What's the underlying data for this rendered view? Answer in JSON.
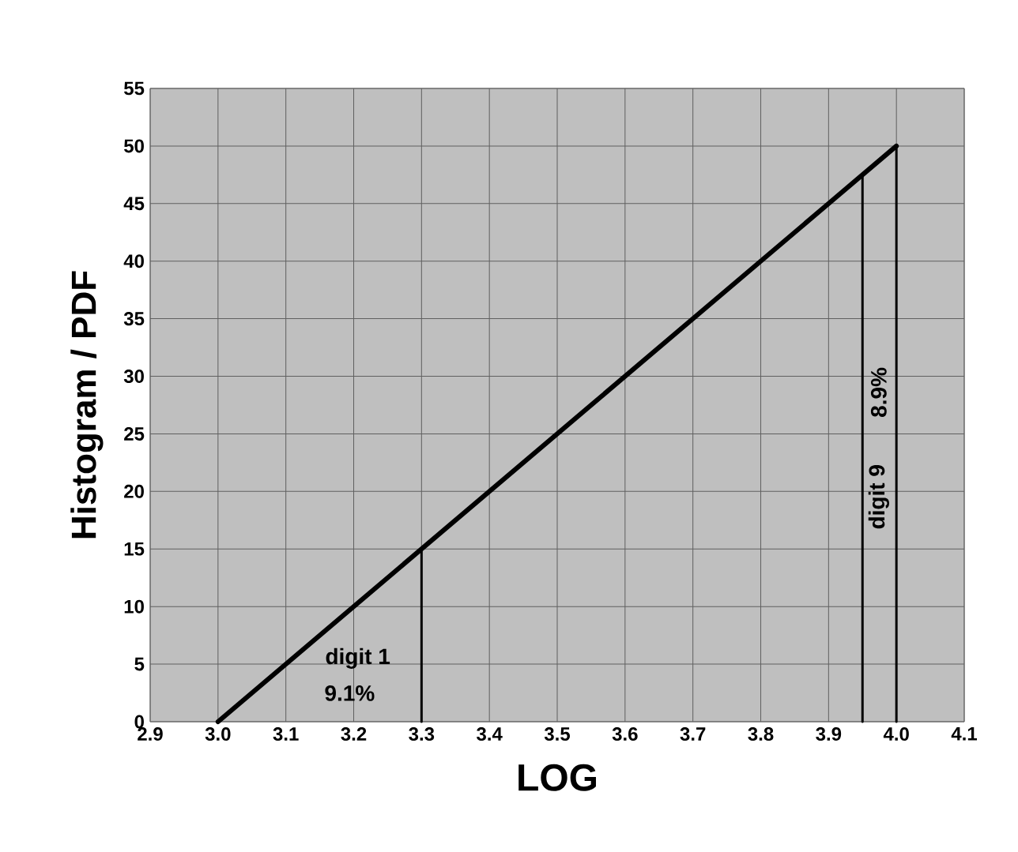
{
  "chart_data": {
    "type": "line",
    "xlabel": "LOG",
    "ylabel": "Histogram / PDF",
    "series": [
      {
        "type": "line",
        "color": "#000000",
        "x": [
          3.0,
          4.0
        ],
        "values": [
          0,
          50
        ]
      },
      {
        "type": "line",
        "color": "#000000",
        "x": [
          3.3,
          3.3
        ],
        "values": [
          0,
          15
        ]
      },
      {
        "type": "line",
        "color": "#000000",
        "x": [
          3.95,
          3.95
        ],
        "values": [
          0,
          47.5
        ]
      },
      {
        "type": "line",
        "color": "#000000",
        "x": [
          4.0,
          4.0
        ],
        "values": [
          0,
          50
        ]
      }
    ],
    "annotations": [
      "digit 1",
      "9.1%",
      "digit 9",
      "8.9%"
    ],
    "xlim": [
      2.9,
      4.1
    ],
    "xticks": [
      {
        "value": 2.9,
        "label": "2.9"
      },
      {
        "value": 3.0,
        "label": "3.0"
      },
      {
        "value": 3.1,
        "label": "3.1"
      },
      {
        "value": 3.2,
        "label": "3.2"
      },
      {
        "value": 3.3,
        "label": "3.3"
      },
      {
        "value": 3.4,
        "label": "3.4"
      },
      {
        "value": 3.5,
        "label": "3.5"
      },
      {
        "value": 3.6,
        "label": "3.6"
      },
      {
        "value": 3.7,
        "label": "3.7"
      },
      {
        "value": 3.8,
        "label": "3.8"
      },
      {
        "value": 3.9,
        "label": "3.9"
      },
      {
        "value": 4.0,
        "label": "4.0"
      },
      {
        "value": 4.1,
        "label": "4.1"
      }
    ],
    "ylim": [
      0,
      55
    ],
    "yticks": [
      0,
      5,
      10,
      15,
      20,
      25,
      30,
      35,
      40,
      45,
      50,
      55
    ],
    "grid": true,
    "marker": "none",
    "line_style": "solid"
  }
}
